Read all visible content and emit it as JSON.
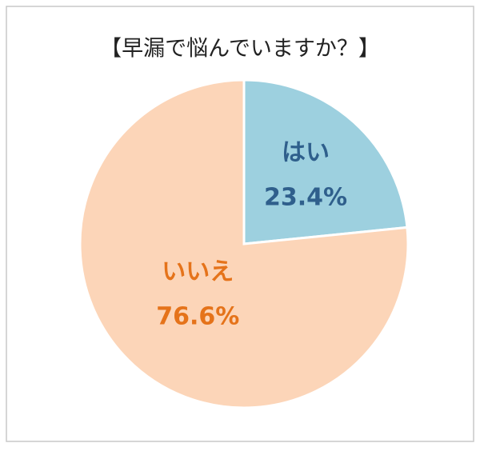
{
  "chart_data": {
    "type": "pie",
    "title": "【早漏で悩んでいますか？】",
    "categories": [
      "はい",
      "いいえ"
    ],
    "values": [
      23.4,
      76.6
    ],
    "value_labels": [
      "23.4%",
      "76.6%"
    ],
    "colors": [
      "#9dd0df",
      "#fcd5b8"
    ],
    "label_colors": [
      "#2f5f8c",
      "#e5731a"
    ]
  }
}
